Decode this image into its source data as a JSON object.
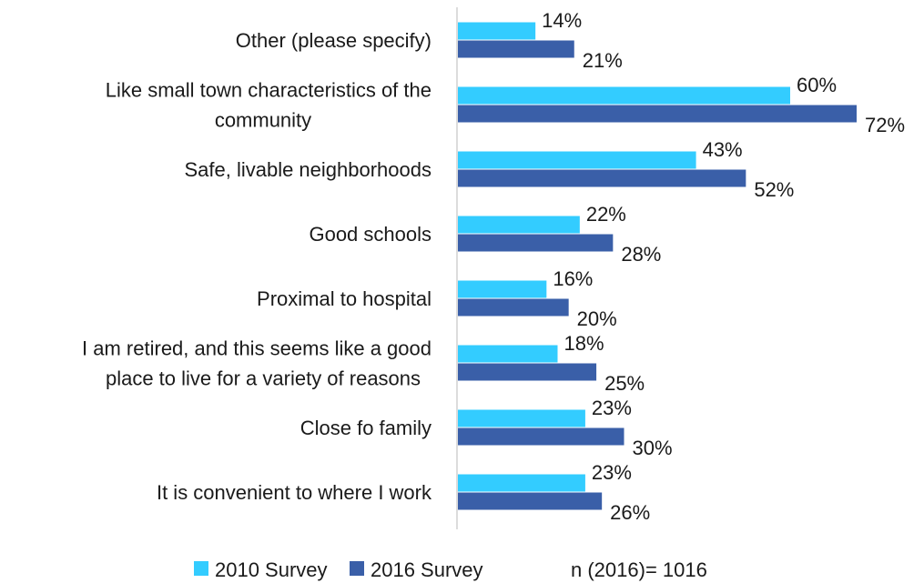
{
  "chart_data": {
    "type": "bar",
    "orientation": "horizontal",
    "categories": [
      [
        "Other (please specify)"
      ],
      [
        "Like small town characteristics of the",
        "community"
      ],
      [
        "Safe, livable neighborhoods"
      ],
      [
        "Good schools"
      ],
      [
        "Proximal to hospital"
      ],
      [
        "I am retired, and this seems like a good",
        "place to live for a variety of reasons"
      ],
      [
        "Close fo family"
      ],
      [
        "It is convenient to where I work"
      ]
    ],
    "series": [
      {
        "name": "2010 Survey",
        "color": "#33ccff",
        "values": [
          14,
          60,
          43,
          22,
          16,
          18,
          23,
          23
        ]
      },
      {
        "name": "2016 Survey",
        "color": "#3a5fa8",
        "values": [
          21,
          72,
          52,
          28,
          20,
          25,
          30,
          26
        ]
      }
    ],
    "value_suffix": "%",
    "xlim": [
      0,
      72
    ],
    "grid": false,
    "legend_position": "bottom",
    "note": "n (2016)= 1016"
  }
}
